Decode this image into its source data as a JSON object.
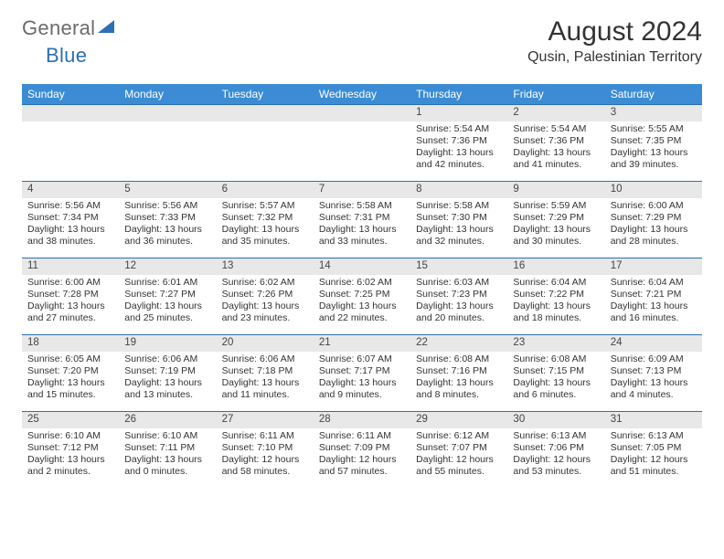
{
  "logo": {
    "part1": "General",
    "part2": "Blue"
  },
  "title": "August 2024",
  "location": "Qusin, Palestinian Territory",
  "colors": {
    "header_bg": "#3b8cd4",
    "header_fg": "#ffffff",
    "cell_top_border": "#2b6fb5",
    "daynum_bg": "#e8e8e8",
    "logo_accent": "#2b6fb5",
    "logo_gray": "#6b6b6b",
    "page_bg": "#ffffff",
    "text": "#333333"
  },
  "day_headers": [
    "Sunday",
    "Monday",
    "Tuesday",
    "Wednesday",
    "Thursday",
    "Friday",
    "Saturday"
  ],
  "weeks": [
    [
      null,
      null,
      null,
      null,
      {
        "d": "1",
        "sr": "5:54 AM",
        "ss": "7:36 PM",
        "dl": "13 hours and 42 minutes."
      },
      {
        "d": "2",
        "sr": "5:54 AM",
        "ss": "7:36 PM",
        "dl": "13 hours and 41 minutes."
      },
      {
        "d": "3",
        "sr": "5:55 AM",
        "ss": "7:35 PM",
        "dl": "13 hours and 39 minutes."
      }
    ],
    [
      {
        "d": "4",
        "sr": "5:56 AM",
        "ss": "7:34 PM",
        "dl": "13 hours and 38 minutes."
      },
      {
        "d": "5",
        "sr": "5:56 AM",
        "ss": "7:33 PM",
        "dl": "13 hours and 36 minutes."
      },
      {
        "d": "6",
        "sr": "5:57 AM",
        "ss": "7:32 PM",
        "dl": "13 hours and 35 minutes."
      },
      {
        "d": "7",
        "sr": "5:58 AM",
        "ss": "7:31 PM",
        "dl": "13 hours and 33 minutes."
      },
      {
        "d": "8",
        "sr": "5:58 AM",
        "ss": "7:30 PM",
        "dl": "13 hours and 32 minutes."
      },
      {
        "d": "9",
        "sr": "5:59 AM",
        "ss": "7:29 PM",
        "dl": "13 hours and 30 minutes."
      },
      {
        "d": "10",
        "sr": "6:00 AM",
        "ss": "7:29 PM",
        "dl": "13 hours and 28 minutes."
      }
    ],
    [
      {
        "d": "11",
        "sr": "6:00 AM",
        "ss": "7:28 PM",
        "dl": "13 hours and 27 minutes."
      },
      {
        "d": "12",
        "sr": "6:01 AM",
        "ss": "7:27 PM",
        "dl": "13 hours and 25 minutes."
      },
      {
        "d": "13",
        "sr": "6:02 AM",
        "ss": "7:26 PM",
        "dl": "13 hours and 23 minutes."
      },
      {
        "d": "14",
        "sr": "6:02 AM",
        "ss": "7:25 PM",
        "dl": "13 hours and 22 minutes."
      },
      {
        "d": "15",
        "sr": "6:03 AM",
        "ss": "7:23 PM",
        "dl": "13 hours and 20 minutes."
      },
      {
        "d": "16",
        "sr": "6:04 AM",
        "ss": "7:22 PM",
        "dl": "13 hours and 18 minutes."
      },
      {
        "d": "17",
        "sr": "6:04 AM",
        "ss": "7:21 PM",
        "dl": "13 hours and 16 minutes."
      }
    ],
    [
      {
        "d": "18",
        "sr": "6:05 AM",
        "ss": "7:20 PM",
        "dl": "13 hours and 15 minutes."
      },
      {
        "d": "19",
        "sr": "6:06 AM",
        "ss": "7:19 PM",
        "dl": "13 hours and 13 minutes."
      },
      {
        "d": "20",
        "sr": "6:06 AM",
        "ss": "7:18 PM",
        "dl": "13 hours and 11 minutes."
      },
      {
        "d": "21",
        "sr": "6:07 AM",
        "ss": "7:17 PM",
        "dl": "13 hours and 9 minutes."
      },
      {
        "d": "22",
        "sr": "6:08 AM",
        "ss": "7:16 PM",
        "dl": "13 hours and 8 minutes."
      },
      {
        "d": "23",
        "sr": "6:08 AM",
        "ss": "7:15 PM",
        "dl": "13 hours and 6 minutes."
      },
      {
        "d": "24",
        "sr": "6:09 AM",
        "ss": "7:13 PM",
        "dl": "13 hours and 4 minutes."
      }
    ],
    [
      {
        "d": "25",
        "sr": "6:10 AM",
        "ss": "7:12 PM",
        "dl": "13 hours and 2 minutes."
      },
      {
        "d": "26",
        "sr": "6:10 AM",
        "ss": "7:11 PM",
        "dl": "13 hours and 0 minutes."
      },
      {
        "d": "27",
        "sr": "6:11 AM",
        "ss": "7:10 PM",
        "dl": "12 hours and 58 minutes."
      },
      {
        "d": "28",
        "sr": "6:11 AM",
        "ss": "7:09 PM",
        "dl": "12 hours and 57 minutes."
      },
      {
        "d": "29",
        "sr": "6:12 AM",
        "ss": "7:07 PM",
        "dl": "12 hours and 55 minutes."
      },
      {
        "d": "30",
        "sr": "6:13 AM",
        "ss": "7:06 PM",
        "dl": "12 hours and 53 minutes."
      },
      {
        "d": "31",
        "sr": "6:13 AM",
        "ss": "7:05 PM",
        "dl": "12 hours and 51 minutes."
      }
    ]
  ],
  "labels": {
    "sunrise": "Sunrise:",
    "sunset": "Sunset:",
    "daylight": "Daylight:"
  }
}
